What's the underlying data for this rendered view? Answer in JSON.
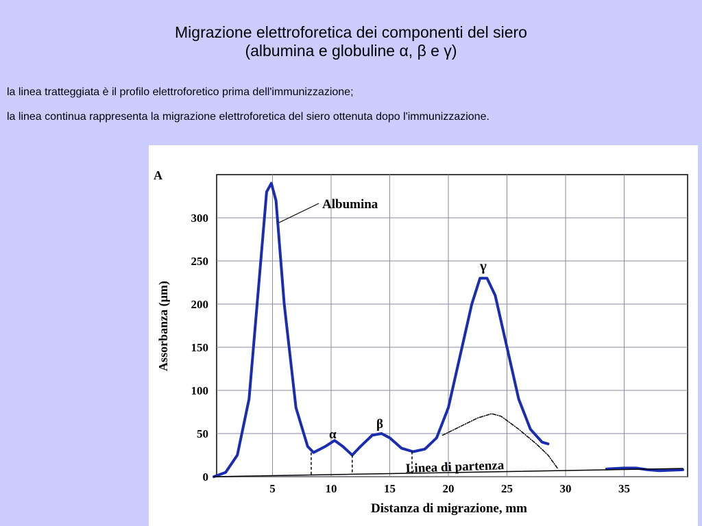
{
  "slide": {
    "title": [
      "Migrazione elettroforetica dei componenti del siero",
      "(albumina e globuline α, β e γ)"
    ],
    "notes": [
      "la linea tratteggiata è il profilo elettroforetico prima dell'immunizzazione;",
      "la linea continua rappresenta la migrazione elettroforetica del siero ottenuta dopo l'immunizzazione."
    ]
  },
  "chart_data": {
    "type": "line",
    "label": "A",
    "xlabel": "Distanza di migrazione, mm",
    "ylabel": "Assorbanza (µm)",
    "xlim": [
      0,
      40
    ],
    "ylim": [
      0,
      350
    ],
    "xticks": [
      5,
      10,
      15,
      20,
      25,
      30,
      35
    ],
    "yticks": [
      0,
      50,
      100,
      150,
      200,
      250,
      300
    ],
    "grid": true,
    "series": [
      {
        "color": "#1a2db0",
        "style": "solid",
        "width": 4,
        "x": [
          0,
          1,
          2,
          3,
          4,
          4.5,
          4.9,
          5.3,
          6,
          7,
          8,
          8.5,
          9.5,
          10.3,
          11,
          11.8,
          12.5,
          13.5,
          14.3,
          15,
          16,
          17,
          18,
          19,
          20,
          21,
          22,
          22.7,
          23.3,
          24,
          25,
          26,
          27,
          28,
          28.5,
          31,
          33.5,
          35,
          36,
          37,
          38,
          40
        ],
        "values": [
          0,
          5,
          25,
          90,
          250,
          330,
          340,
          320,
          200,
          80,
          35,
          28,
          35,
          42,
          35,
          25,
          35,
          48,
          50,
          45,
          33,
          29,
          32,
          45,
          80,
          140,
          200,
          230,
          230,
          210,
          150,
          90,
          55,
          40,
          38,
          null,
          9,
          10,
          10,
          8,
          7,
          8
        ]
      },
      {
        "color": "#000000",
        "style": "dashed",
        "width": 1.5,
        "x": [
          19.5,
          21,
          22.5,
          23.7,
          24.5,
          26,
          27.5,
          28.5,
          29.3
        ],
        "values": [
          48,
          58,
          68,
          73,
          70,
          55,
          38,
          25,
          10
        ]
      },
      {
        "color": "#000000",
        "style": "solid",
        "width": 1.5,
        "x": [
          0,
          40
        ],
        "values": [
          0,
          9.5
        ]
      }
    ],
    "minima": {
      "x": [
        8.3,
        11.8,
        16.9
      ],
      "values": [
        28,
        25,
        29
      ]
    },
    "annotations": [
      "Albumina",
      "α",
      "β",
      "γ",
      "Linea di partenza"
    ]
  }
}
